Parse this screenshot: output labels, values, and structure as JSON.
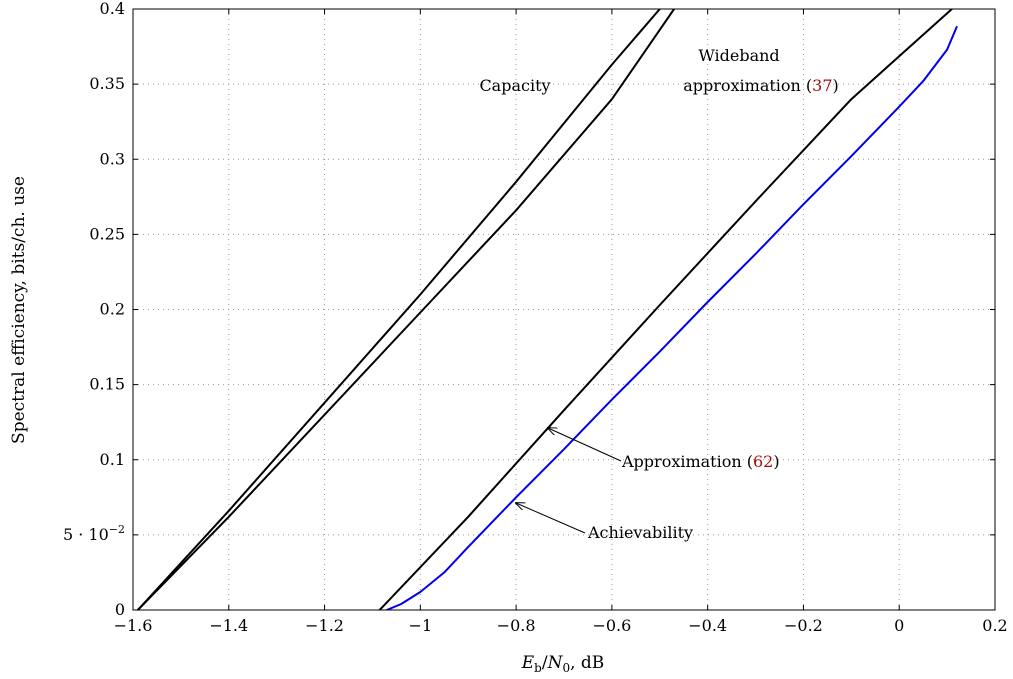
{
  "chart_data": {
    "type": "line",
    "xlabel": "E_b/N_0, dB",
    "ylabel": "Spectral efficiency, bits/ch. use",
    "xlim": [
      -1.6,
      0.2
    ],
    "ylim": [
      0,
      0.4
    ],
    "x_ticks": [
      -1.6,
      -1.4,
      -1.2,
      -1,
      -0.8,
      -0.6,
      -0.4,
      -0.2,
      0,
      0.2
    ],
    "x_tick_labels": [
      "−1.6",
      "−1.4",
      "−1.2",
      "−1",
      "−0.8",
      "−0.6",
      "−0.4",
      "−0.2",
      "0",
      "0.2"
    ],
    "y_ticks": [
      0,
      0.05,
      0.1,
      0.15,
      0.2,
      0.25,
      0.3,
      0.35,
      0.4
    ],
    "y_tick_labels": [
      "0",
      "5 · 10",
      "0.1",
      "0.15",
      "0.2",
      "0.25",
      "0.3",
      "0.35",
      "0.4"
    ],
    "y_tick_exponent": "−2",
    "grid": true,
    "series": [
      {
        "color": "#000000",
        "x": [
          -1.59,
          -1.4,
          -1.2,
          -1.0,
          -0.8,
          -0.6,
          -0.5
        ],
        "y": [
          0.0,
          0.066,
          0.138,
          0.21,
          0.285,
          0.363,
          0.4
        ]
      },
      {
        "color": "#000000",
        "x": [
          -1.59,
          -1.4,
          -1.2,
          -1.0,
          -0.8,
          -0.6,
          -0.47
        ],
        "y": [
          0.0,
          0.062,
          0.13,
          0.198,
          0.266,
          0.34,
          0.4
        ]
      },
      {
        "color": "#000000",
        "x": [
          -1.085,
          -0.9,
          -0.7,
          -0.5,
          -0.3,
          -0.1,
          0.11
        ],
        "y": [
          0.0,
          0.062,
          0.133,
          0.203,
          0.272,
          0.34,
          0.4
        ]
      },
      {
        "color": "#0000ee",
        "x": [
          -1.07,
          -1.04,
          -1.0,
          -0.95,
          -0.9,
          -0.8,
          -0.7,
          -0.6,
          -0.5,
          -0.4,
          -0.3,
          -0.2,
          -0.1,
          0.0,
          0.05,
          0.1,
          0.12
        ],
        "y": [
          0.0,
          0.004,
          0.012,
          0.025,
          0.042,
          0.075,
          0.107,
          0.14,
          0.172,
          0.205,
          0.237,
          0.27,
          0.302,
          0.335,
          0.352,
          0.373,
          0.388
        ]
      }
    ],
    "annotations": {
      "capacity": "Capacity",
      "wideband_line1": "Wideband",
      "wideband_line2": "approximation (",
      "wideband_ref": "37",
      "wideband_close": ")",
      "approx_text": "Approximation (",
      "approx_ref": "62",
      "approx_close": ")",
      "achievability": "Achievability"
    }
  }
}
